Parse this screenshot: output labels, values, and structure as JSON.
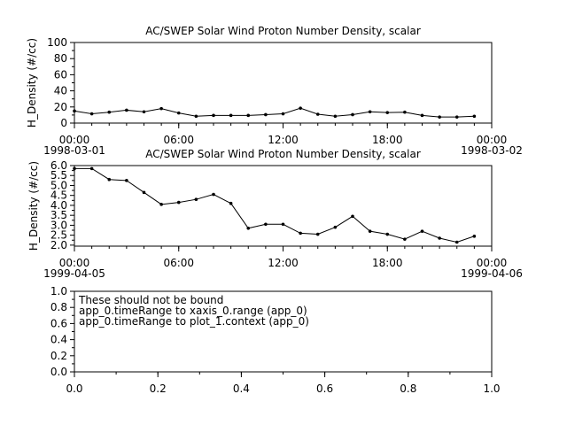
{
  "chart_data": [
    {
      "type": "line",
      "title": "AC/SWEP  Solar Wind Proton Number Density, scalar",
      "ylabel": "H_Density (#/cc)",
      "ylim": [
        0,
        100
      ],
      "yticks": [
        "0",
        "20",
        "40",
        "60",
        "80",
        "100"
      ],
      "xticks": [
        "00:00",
        "06:00",
        "12:00",
        "18:00",
        "00:00"
      ],
      "xdate_start": "1998-03-01",
      "xdate_end": "1998-03-02",
      "x_hours": [
        0,
        1,
        2,
        3,
        4,
        5,
        6,
        7,
        8,
        9,
        10,
        11,
        12,
        13,
        14,
        15,
        16,
        17,
        18,
        19,
        20,
        21,
        22,
        23
      ],
      "values": [
        15,
        11.5,
        13.5,
        16,
        14,
        18,
        12.5,
        8.5,
        9.5,
        9.5,
        9.5,
        10.5,
        11.5,
        18.5,
        11,
        8.5,
        10.5,
        14,
        13,
        13.5,
        9.5,
        7.5,
        7.5,
        8.5
      ]
    },
    {
      "type": "line",
      "title": "AC/SWEP  Solar Wind Proton Number Density, scalar",
      "ylabel": "H_Density (#/cc)",
      "ylim": [
        1.95,
        6.0
      ],
      "yticks": [
        "2.0",
        "2.5",
        "3.0",
        "3.5",
        "4.0",
        "4.5",
        "5.0",
        "5.5",
        "6.0"
      ],
      "xticks": [
        "00:00",
        "06:00",
        "12:00",
        "18:00",
        "00:00"
      ],
      "xdate_start": "1999-04-05",
      "xdate_end": "1999-04-06",
      "x_hours": [
        0,
        1,
        2,
        3,
        4,
        5,
        6,
        7,
        8,
        9,
        10,
        11,
        12,
        13,
        14,
        15,
        16,
        17,
        18,
        19,
        20,
        21,
        22,
        23
      ],
      "values": [
        5.85,
        5.85,
        5.3,
        5.25,
        4.65,
        4.05,
        4.15,
        4.3,
        4.55,
        4.1,
        2.85,
        3.05,
        3.05,
        2.6,
        2.55,
        2.9,
        3.45,
        2.7,
        2.55,
        2.3,
        2.7,
        2.35,
        2.15,
        2.45
      ]
    },
    {
      "type": "line",
      "ylim": [
        0,
        1
      ],
      "xlim": [
        0,
        1
      ],
      "yticks": [
        "0.0",
        "0.2",
        "0.4",
        "0.6",
        "0.8",
        "1.0"
      ],
      "xticks": [
        "0.0",
        "0.2",
        "0.4",
        "0.6",
        "0.8",
        "1.0"
      ],
      "annotation": [
        "These should not be bound",
        "app_0.timeRange to xaxis_0.range  (app_0)",
        "app_0.timeRange to plot_1.context  (app_0)"
      ]
    }
  ]
}
